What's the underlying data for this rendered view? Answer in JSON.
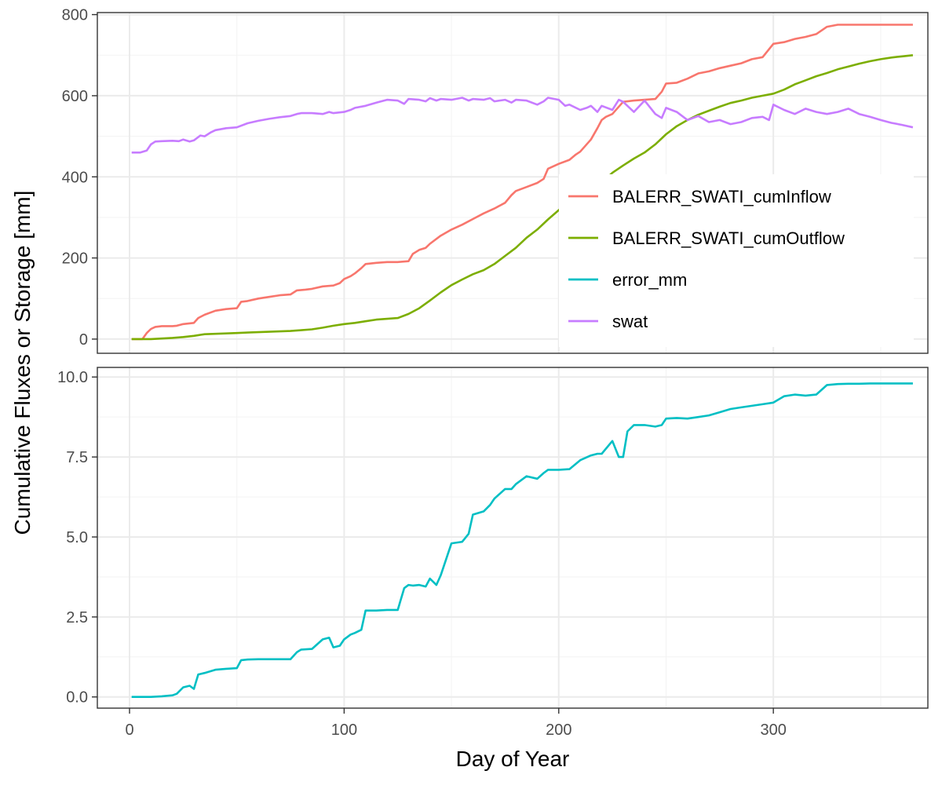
{
  "chart_data": {
    "type": "line",
    "title": "",
    "xlabel": "Day of Year",
    "ylabel": "Cumulative Fluxes or Storage [mm]",
    "grid": true,
    "legend_position": "inside-top-panel-right",
    "xlim": [
      -15,
      372
    ],
    "x_ticks": [
      0,
      100,
      200,
      300
    ],
    "x_tick_labels": [
      "0",
      "100",
      "200",
      "300"
    ],
    "legend": [
      {
        "name": "BALERR_SWATI_cumInflow",
        "color": "#F8766D"
      },
      {
        "name": "BALERR_SWATI_cumOutflow",
        "color": "#7CAE00"
      },
      {
        "name": "error_mm",
        "color": "#00BFC4"
      },
      {
        "name": "swat",
        "color": "#C77CFF"
      }
    ],
    "panels": [
      {
        "id": "top",
        "ylim": [
          -35,
          805
        ],
        "y_ticks": [
          0,
          200,
          400,
          600,
          800
        ],
        "y_tick_labels": [
          "0",
          "200",
          "400",
          "600",
          "800"
        ],
        "series": [
          {
            "name": "BALERR_SWATI_cumInflow",
            "color": "#F8766D",
            "x": [
              1,
              6,
              8,
              10,
              12,
              15,
              20,
              22,
              25,
              30,
              32,
              35,
              40,
              45,
              50,
              52,
              55,
              60,
              65,
              70,
              75,
              78,
              82,
              85,
              90,
              95,
              98,
              100,
              103,
              105,
              108,
              110,
              115,
              120,
              125,
              130,
              132,
              135,
              138,
              140,
              145,
              150,
              155,
              160,
              165,
              170,
              175,
              178,
              180,
              185,
              190,
              193,
              195,
              200,
              205,
              208,
              210,
              215,
              218,
              220,
              222,
              225,
              230,
              235,
              240,
              245,
              248,
              250,
              255,
              260,
              265,
              270,
              275,
              280,
              285,
              290,
              295,
              300,
              305,
              310,
              315,
              320,
              325,
              330,
              335,
              340,
              345,
              350,
              355,
              360,
              365
            ],
            "y": [
              0,
              0,
              15,
              25,
              30,
              32,
              32,
              33,
              37,
              40,
              52,
              60,
              70,
              74,
              76,
              92,
              94,
              100,
              104,
              108,
              110,
              120,
              122,
              124,
              130,
              132,
              138,
              148,
              155,
              162,
              175,
              185,
              188,
              190,
              190,
              192,
              210,
              220,
              225,
              235,
              255,
              270,
              282,
              296,
              310,
              322,
              336,
              355,
              365,
              375,
              385,
              395,
              420,
              432,
              442,
              455,
              462,
              492,
              520,
              540,
              548,
              555,
              585,
              588,
              590,
              592,
              610,
              630,
              632,
              642,
              655,
              660,
              668,
              674,
              680,
              690,
              695,
              728,
              732,
              740,
              745,
              752,
              770,
              775,
              775,
              775,
              775,
              775,
              775,
              775,
              775
            ]
          },
          {
            "name": "BALERR_SWATI_cumOutflow",
            "color": "#7CAE00",
            "x": [
              1,
              10,
              20,
              25,
              30,
              35,
              40,
              45,
              50,
              55,
              60,
              65,
              70,
              75,
              80,
              85,
              90,
              95,
              100,
              105,
              110,
              115,
              120,
              125,
              130,
              135,
              140,
              145,
              150,
              155,
              160,
              165,
              170,
              175,
              180,
              185,
              190,
              195,
              200,
              205,
              210,
              215,
              220,
              225,
              230,
              235,
              240,
              245,
              250,
              255,
              260,
              265,
              270,
              275,
              280,
              285,
              290,
              295,
              300,
              305,
              310,
              315,
              320,
              325,
              330,
              335,
              340,
              345,
              350,
              355,
              360,
              365
            ],
            "y": [
              0,
              0,
              3,
              5,
              8,
              12,
              13,
              14,
              15,
              16,
              17,
              18,
              19,
              20,
              22,
              24,
              28,
              33,
              37,
              40,
              44,
              48,
              50,
              52,
              62,
              76,
              95,
              115,
              133,
              147,
              160,
              170,
              185,
              205,
              225,
              250,
              270,
              295,
              318,
              340,
              350,
              365,
              385,
              410,
              428,
              445,
              460,
              480,
              505,
              525,
              540,
              553,
              563,
              573,
              582,
              588,
              595,
              600,
              605,
              615,
              628,
              638,
              648,
              656,
              665,
              672,
              679,
              685,
              690,
              694,
              697,
              700
            ]
          },
          {
            "name": "swat",
            "color": "#C77CFF",
            "x": [
              1,
              5,
              8,
              10,
              12,
              15,
              20,
              23,
              25,
              28,
              30,
              33,
              35,
              38,
              40,
              45,
              50,
              55,
              60,
              65,
              70,
              75,
              78,
              80,
              85,
              90,
              93,
              95,
              100,
              103,
              105,
              110,
              115,
              120,
              125,
              128,
              130,
              135,
              138,
              140,
              143,
              145,
              150,
              155,
              158,
              160,
              165,
              168,
              170,
              175,
              178,
              180,
              185,
              190,
              193,
              195,
              200,
              203,
              205,
              210,
              213,
              215,
              218,
              220,
              225,
              228,
              230,
              235,
              240,
              245,
              248,
              250,
              255,
              260,
              265,
              270,
              275,
              280,
              285,
              290,
              295,
              298,
              300,
              305,
              310,
              315,
              320,
              325,
              330,
              335,
              340,
              345,
              350,
              355,
              360,
              365
            ],
            "y": [
              460,
              460,
              465,
              480,
              487,
              488,
              489,
              488,
              492,
              487,
              490,
              502,
              500,
              510,
              515,
              520,
              522,
              532,
              538,
              543,
              547,
              550,
              555,
              557,
              557,
              555,
              560,
              557,
              560,
              565,
              570,
              575,
              583,
              590,
              588,
              580,
              592,
              590,
              586,
              594,
              588,
              592,
              590,
              595,
              588,
              592,
              590,
              594,
              586,
              590,
              583,
              590,
              588,
              578,
              586,
              595,
              590,
              575,
              578,
              565,
              570,
              575,
              560,
              575,
              565,
              590,
              585,
              560,
              588,
              555,
              545,
              570,
              560,
              540,
              550,
              535,
              540,
              530,
              535,
              545,
              548,
              540,
              578,
              565,
              555,
              568,
              560,
              555,
              560,
              568,
              555,
              548,
              540,
              533,
              528,
              522
            ]
          }
        ]
      },
      {
        "id": "bottom",
        "ylim": [
          -0.35,
          10.3
        ],
        "y_ticks": [
          0,
          2.5,
          5,
          7.5,
          10
        ],
        "y_tick_labels": [
          "0.0",
          "2.5",
          "5.0",
          "7.5",
          "10.0"
        ],
        "series": [
          {
            "name": "error_mm",
            "color": "#00BFC4",
            "x": [
              1,
              10,
              15,
              20,
              22,
              25,
              28,
              30,
              32,
              35,
              40,
              45,
              50,
              52,
              55,
              60,
              65,
              70,
              75,
              78,
              80,
              85,
              90,
              93,
              95,
              98,
              100,
              103,
              105,
              108,
              110,
              115,
              120,
              125,
              128,
              130,
              132,
              135,
              138,
              140,
              143,
              145,
              150,
              155,
              158,
              160,
              165,
              168,
              170,
              175,
              178,
              180,
              185,
              190,
              193,
              195,
              200,
              205,
              210,
              215,
              218,
              220,
              225,
              228,
              230,
              232,
              235,
              240,
              245,
              248,
              250,
              255,
              260,
              265,
              270,
              275,
              280,
              285,
              290,
              295,
              300,
              305,
              310,
              315,
              320,
              325,
              330,
              335,
              340,
              345,
              350,
              355,
              360,
              365
            ],
            "y": [
              0,
              0,
              0.02,
              0.05,
              0.1,
              0.3,
              0.35,
              0.25,
              0.7,
              0.75,
              0.85,
              0.88,
              0.9,
              1.15,
              1.17,
              1.18,
              1.18,
              1.18,
              1.18,
              1.4,
              1.48,
              1.5,
              1.8,
              1.85,
              1.55,
              1.6,
              1.8,
              1.95,
              2.0,
              2.1,
              2.7,
              2.7,
              2.72,
              2.72,
              3.4,
              3.5,
              3.48,
              3.5,
              3.45,
              3.7,
              3.5,
              3.8,
              4.8,
              4.85,
              5.1,
              5.7,
              5.8,
              6.0,
              6.2,
              6.5,
              6.5,
              6.65,
              6.9,
              6.82,
              7.0,
              7.1,
              7.1,
              7.12,
              7.4,
              7.55,
              7.6,
              7.6,
              8.0,
              7.5,
              7.5,
              8.3,
              8.5,
              8.5,
              8.45,
              8.5,
              8.7,
              8.72,
              8.7,
              8.75,
              8.8,
              8.9,
              9.0,
              9.05,
              9.1,
              9.15,
              9.2,
              9.4,
              9.45,
              9.42,
              9.45,
              9.75,
              9.78,
              9.79,
              9.79,
              9.8,
              9.8,
              9.8,
              9.8,
              9.8
            ]
          }
        ]
      }
    ]
  }
}
